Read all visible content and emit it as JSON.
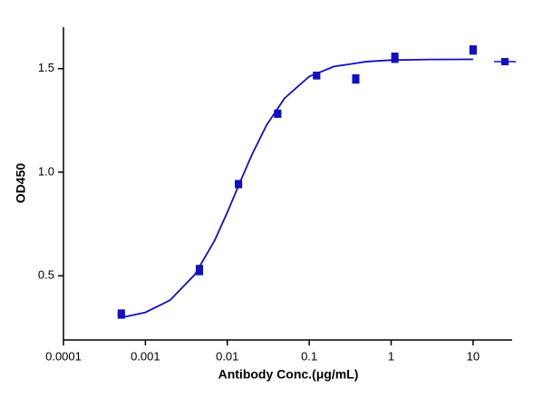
{
  "chart_data": {
    "type": "scatter",
    "xlabel": "Antibody Conc.(μg/mL)",
    "ylabel": "OD450",
    "xscale": "log",
    "xlim": [
      0.0001,
      30
    ],
    "ylim": [
      0.19,
      1.7
    ],
    "xticks": [
      0.0001,
      0.001,
      0.01,
      0.1,
      1,
      10
    ],
    "yticks": [
      {
        "value": 0.5,
        "label": "0.5"
      },
      {
        "value": 1.0,
        "label": "1.0"
      },
      {
        "value": 1.5,
        "label": "1.5"
      }
    ],
    "series": [
      {
        "type": "scatter",
        "color": "#1010c0",
        "x": [
          0.000508,
          0.000508,
          0.00457,
          0.00457,
          0.0137,
          0.0137,
          0.0412,
          0.0412,
          0.123,
          0.123,
          0.37,
          0.37,
          1.11,
          1.11,
          10,
          10
        ],
        "values": [
          0.31,
          0.32,
          0.52,
          0.535,
          0.94,
          0.945,
          1.28,
          1.285,
          1.465,
          1.468,
          1.445,
          1.455,
          1.545,
          1.56,
          1.585,
          1.595
        ]
      },
      {
        "type": "line",
        "color": "#1010c0",
        "x": [
          0.0005,
          0.001,
          0.002,
          0.004,
          0.007,
          0.01,
          0.015,
          0.02,
          0.03,
          0.05,
          0.1,
          0.2,
          0.5,
          1,
          3,
          10
        ],
        "values": [
          0.298,
          0.323,
          0.382,
          0.505,
          0.67,
          0.806,
          0.971,
          1.085,
          1.226,
          1.357,
          1.462,
          1.51,
          1.534,
          1.541,
          1.544,
          1.545
        ]
      }
    ]
  }
}
